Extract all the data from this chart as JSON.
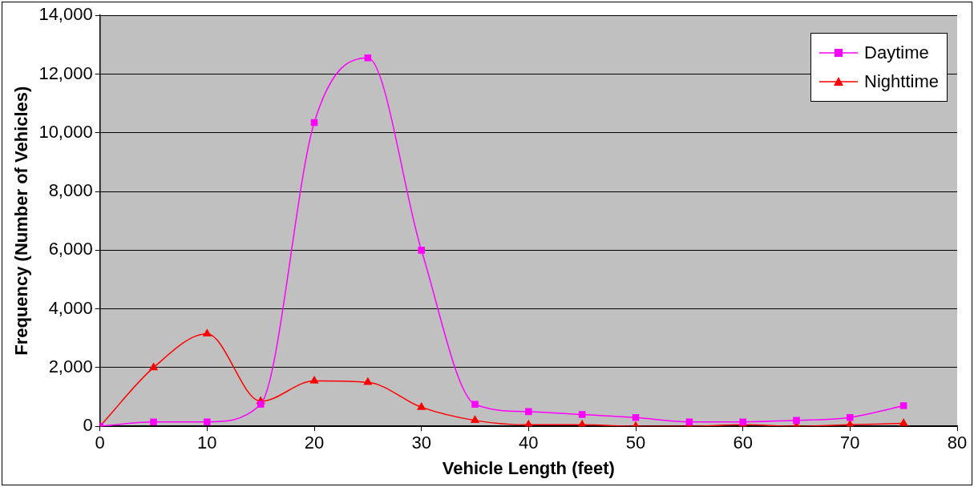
{
  "chart_data": {
    "type": "line",
    "xlabel": "Vehicle Length (feet)",
    "ylabel": "Frequency (Number of Vehicles)",
    "x": [
      0,
      5,
      10,
      15,
      20,
      25,
      30,
      35,
      40,
      45,
      50,
      55,
      60,
      65,
      70,
      75
    ],
    "series": [
      {
        "name": "Daytime",
        "color": "#ff00ff",
        "marker": "square",
        "values": [
          0,
          150,
          150,
          750,
          10350,
          12550,
          6000,
          750,
          500,
          400,
          300,
          150,
          150,
          200,
          300,
          700
        ]
      },
      {
        "name": "Nighttime",
        "color": "#ff0000",
        "marker": "triangle",
        "values": [
          0,
          2000,
          3150,
          850,
          1550,
          1500,
          650,
          200,
          50,
          50,
          0,
          0,
          50,
          0,
          50,
          100
        ]
      }
    ],
    "xlim": [
      0,
      80
    ],
    "xticks": [
      0,
      10,
      20,
      30,
      40,
      50,
      60,
      70,
      80
    ],
    "ylim": [
      0,
      14000
    ],
    "yticks": [
      0,
      {
        "value": 2000,
        "label": "2,000"
      },
      {
        "value": 4000,
        "label": "4,000"
      },
      {
        "value": 6000,
        "label": "6,000"
      },
      {
        "value": 8000,
        "label": "8,000"
      },
      {
        "value": 10000,
        "label": "10,000"
      },
      {
        "value": 12000,
        "label": "12,000"
      },
      {
        "value": 14000,
        "label": "14,000"
      }
    ],
    "grid": "y",
    "legend": "top right",
    "line_style": "solid"
  }
}
